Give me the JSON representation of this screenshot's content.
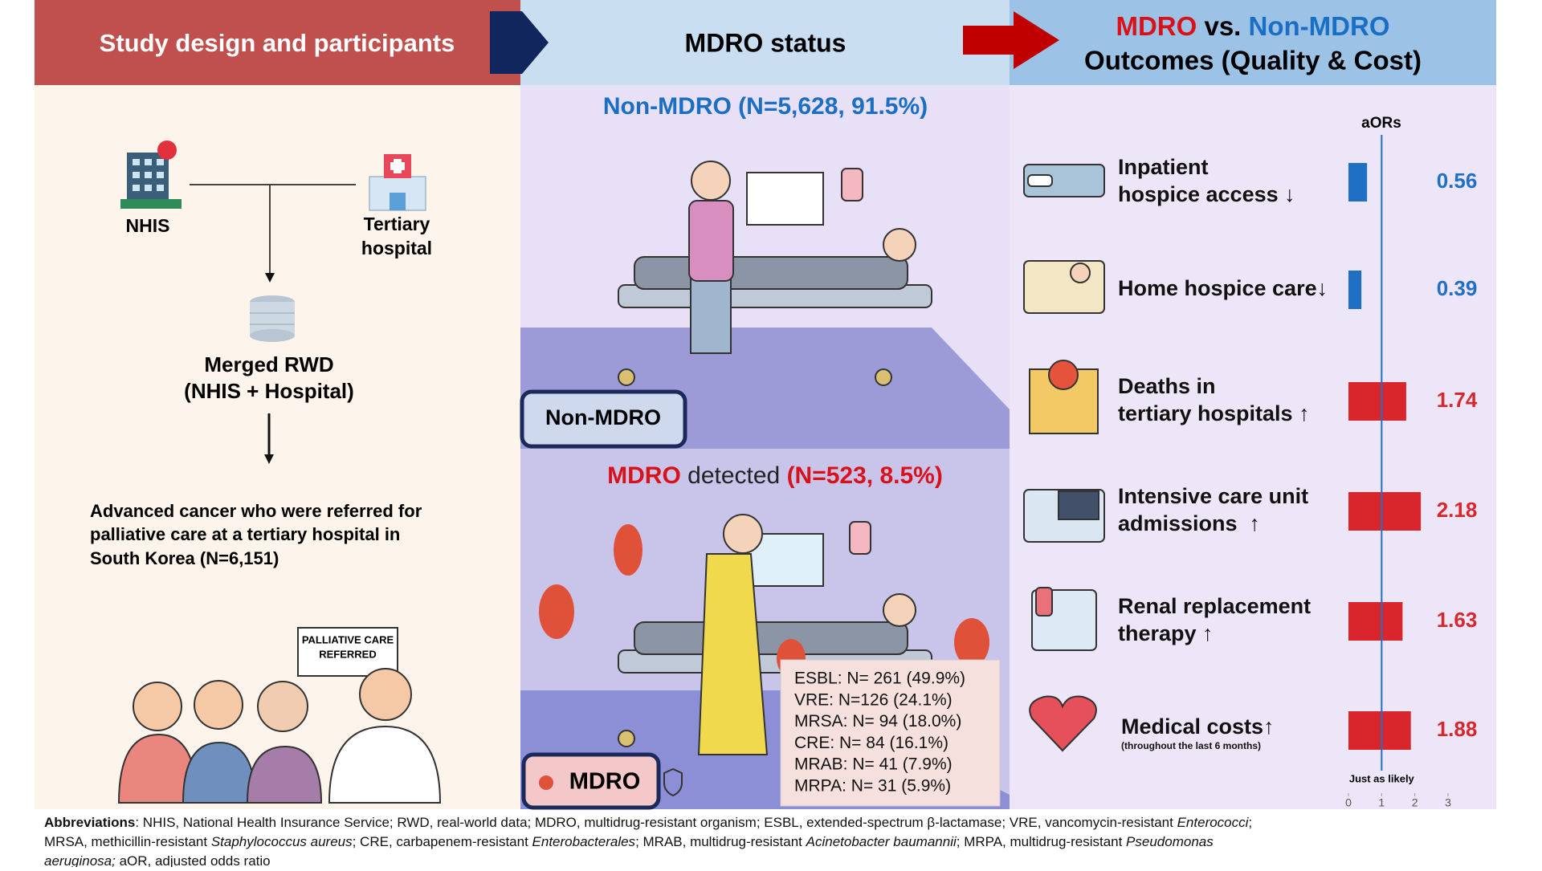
{
  "header": {
    "study_design": "Study design and participants",
    "mdro_status": "MDRO status",
    "outcomes_mdro": "MDRO",
    "outcomes_vs": " vs. ",
    "outcomes_non_mdro": "Non-MDRO",
    "outcomes_subtitle": "Outcomes (Quality & Cost)"
  },
  "study": {
    "nhis": "NHIS",
    "tertiary": [
      "Tertiary",
      "hospital"
    ],
    "merged": [
      "Merged RWD",
      "(NHIS + Hospital)"
    ],
    "population": [
      "Advanced cancer who were referred for",
      "palliative care at a tertiary hospital in",
      "South Korea (N=6,151)"
    ],
    "sign": [
      "PALLIATIVE CARE",
      "REFERRED"
    ]
  },
  "status": {
    "non_mdro": {
      "name": "Non-MDRO",
      "stats": " (N=5,628, 91.5%)",
      "badge": "Non-MDRO"
    },
    "mdro": {
      "name": "MDRO",
      "detected": " detected ",
      "stats": "(N=523, 8.5%)",
      "badge": "MDRO",
      "organisms": [
        "ESBL: N= 261 (49.9%)",
        "VRE: N=126 (24.1%)",
        "MRSA: N= 94 (18.0%)",
        "CRE: N= 84 (16.1%)",
        "MRAB: N= 41 (7.9%)",
        "MRPA: N= 31 (5.9%)"
      ]
    }
  },
  "outcomes": {
    "axis_title": "aORs",
    "xlim": [
      0,
      3
    ],
    "xticks": [
      0,
      1,
      2,
      3
    ],
    "reference": 1,
    "reference_label": "Just as likely",
    "items": [
      {
        "label": [
          "Inpatient",
          "hospice access ↓"
        ],
        "value": 0.56,
        "color": "#1f6fc5"
      },
      {
        "label": [
          "Home hospice care↓"
        ],
        "value": 0.39,
        "color": "#1f6fc5"
      },
      {
        "label": [
          "Deaths in",
          "tertiary hospitals ↑"
        ],
        "value": 1.74,
        "color": "#d9262c"
      },
      {
        "label": [
          "Intensive care unit",
          "admissions  ↑"
        ],
        "value": 2.18,
        "color": "#d9262c"
      },
      {
        "label": [
          "Renal replacement",
          "therapy ↑"
        ],
        "value": 1.63,
        "color": "#d9262c"
      },
      {
        "label": [
          "Medical costs↑"
        ],
        "note": "(throughout the last 6 months)",
        "value": 1.88,
        "color": "#d9262c"
      }
    ]
  },
  "footer": {
    "lines": [
      [
        {
          "text": "Abbreviations",
          "style": "bold"
        },
        {
          "text": ": NHIS, National Health Insurance Service; RWD, real-world data; MDRO, multidrug-resistant organism; ESBL, extended-spectrum β-lactamase; VRE, vancomycin-resistant "
        },
        {
          "text": "Enterococci",
          "style": "italic"
        },
        {
          "text": ";"
        }
      ],
      [
        {
          "text": "MRSA, methicillin-resistant "
        },
        {
          "text": "Staphylococcus aureus",
          "style": "italic"
        },
        {
          "text": "; CRE, carbapenem-resistant "
        },
        {
          "text": "Enterobacterales",
          "style": "italic"
        },
        {
          "text": "; MRAB, multidrug-resistant "
        },
        {
          "text": "Acinetobacter baumannii",
          "style": "italic"
        },
        {
          "text": "; MRPA, multidrug-resistant "
        },
        {
          "text": "Pseudomonas",
          "style": "italic"
        }
      ],
      [
        {
          "text": "aeruginosa;",
          "style": "italic"
        },
        {
          "text": " aOR, adjusted odds ratio"
        }
      ]
    ]
  }
}
